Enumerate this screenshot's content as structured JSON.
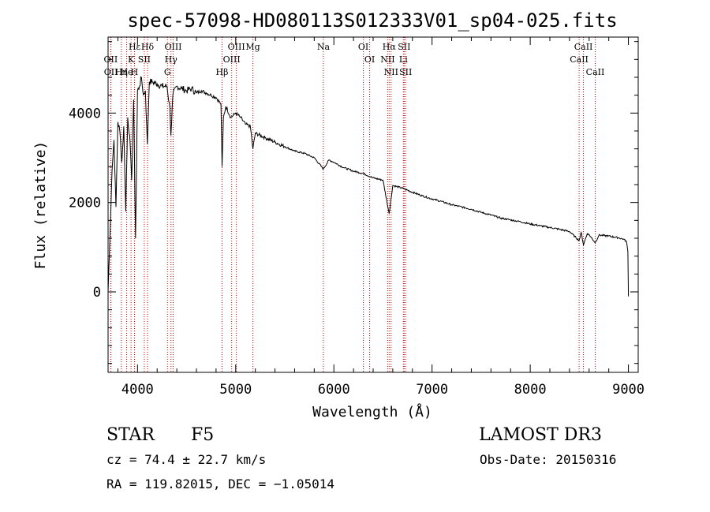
{
  "chart_data": {
    "type": "line",
    "title": "spec-57098-HD080113S012333V01_sp04-025.fits",
    "xlabel": "Wavelength (Å)",
    "ylabel": "Flux (relative)",
    "xlim": [
      3700,
      9100
    ],
    "ylim": [
      -1800,
      5700
    ],
    "xticks": [
      4000,
      5000,
      6000,
      7000,
      8000,
      9000
    ],
    "yticks": [
      0,
      2000,
      4000
    ],
    "grid": false,
    "series": [
      {
        "name": "Flux",
        "color": "#000000",
        "x": [
          3700,
          3720,
          3740,
          3760,
          3780,
          3800,
          3820,
          3840,
          3860,
          3880,
          3900,
          3920,
          3940,
          3960,
          3980,
          4000,
          4020,
          4040,
          4060,
          4080,
          4100,
          4120,
          4150,
          4200,
          4250,
          4300,
          4330,
          4340,
          4360,
          4400,
          4450,
          4500,
          4550,
          4600,
          4650,
          4700,
          4750,
          4800,
          4850,
          4861,
          4875,
          4900,
          4950,
          5000,
          5050,
          5100,
          5150,
          5175,
          5200,
          5300,
          5400,
          5500,
          5600,
          5700,
          5800,
          5893,
          5950,
          6000,
          6100,
          6200,
          6300,
          6400,
          6500,
          6563,
          6600,
          6700,
          6800,
          6900,
          7000,
          7100,
          7200,
          7300,
          7400,
          7500,
          7600,
          7700,
          7800,
          7900,
          8000,
          8100,
          8200,
          8300,
          8400,
          8498,
          8520,
          8542,
          8580,
          8600,
          8662,
          8700,
          8800,
          8900,
          8950,
          8980,
          8995,
          9000
        ],
        "values": [
          0,
          1300,
          2700,
          3400,
          1900,
          3800,
          3600,
          2900,
          3700,
          1800,
          3900,
          3500,
          2500,
          4300,
          1200,
          4500,
          4600,
          4800,
          4400,
          4500,
          3300,
          4700,
          4700,
          4650,
          4600,
          4600,
          4100,
          3500,
          4400,
          4600,
          4550,
          4500,
          4550,
          4450,
          4500,
          4450,
          4400,
          4350,
          4200,
          2800,
          3900,
          4150,
          3900,
          4000,
          3900,
          3750,
          3700,
          3200,
          3550,
          3450,
          3350,
          3250,
          3150,
          3100,
          3000,
          2750,
          2950,
          2900,
          2780,
          2700,
          2650,
          2550,
          2500,
          1750,
          2380,
          2320,
          2230,
          2150,
          2080,
          2020,
          1950,
          1900,
          1850,
          1780,
          1720,
          1650,
          1610,
          1570,
          1520,
          1480,
          1440,
          1400,
          1350,
          1150,
          1330,
          1050,
          1300,
          1280,
          1100,
          1270,
          1250,
          1210,
          1180,
          1130,
          900,
          -100
        ]
      }
    ],
    "lines": [
      {
        "label": "Hε",
        "wavelength": 3970
      },
      {
        "label": "OII",
        "wavelength": 3727
      },
      {
        "label": "OII",
        "wavelength": 3729
      },
      {
        "label": "K",
        "wavelength": 3934
      },
      {
        "label": "He",
        "wavelength": 3889
      },
      {
        "label": "Hη",
        "wavelength": 3835
      },
      {
        "label": "SII",
        "wavelength": 4069
      },
      {
        "label": "H",
        "wavelength": 3969
      },
      {
        "label": "Hδ",
        "wavelength": 4102
      },
      {
        "label": "OIII",
        "wavelength": 4363
      },
      {
        "label": "Hγ",
        "wavelength": 4341
      },
      {
        "label": "G",
        "wavelength": 4305
      },
      {
        "label": "OIII",
        "wavelength": 5007
      },
      {
        "label": "OIII",
        "wavelength": 4959
      },
      {
        "label": "Hβ",
        "wavelength": 4861
      },
      {
        "label": "Mg",
        "wavelength": 5175
      },
      {
        "label": "Na",
        "wavelength": 5893
      },
      {
        "label": "OI",
        "wavelength": 6300
      },
      {
        "label": "OI",
        "wavelength": 6364
      },
      {
        "label": "Hα",
        "wavelength": 6563
      },
      {
        "label": "NII",
        "wavelength": 6548
      },
      {
        "label": "NII",
        "wavelength": 6583
      },
      {
        "label": "SII",
        "wavelength": 6716
      },
      {
        "label": "Li",
        "wavelength": 6708
      },
      {
        "label": "SII",
        "wavelength": 6731
      },
      {
        "label": "CaII",
        "wavelength": 8542
      },
      {
        "label": "CaII",
        "wavelength": 8498
      },
      {
        "label": "CaII",
        "wavelength": 8662
      }
    ],
    "line_color": "#cc0000"
  },
  "info": {
    "class_label": "STAR",
    "subclass_label": "F5",
    "survey": "LAMOST DR3",
    "cz": "cz = 74.4 ± 22.7 km/s",
    "obs_date": "Obs-Date: 20150316",
    "coords": "RA = 119.82015, DEC =  −1.05014"
  }
}
